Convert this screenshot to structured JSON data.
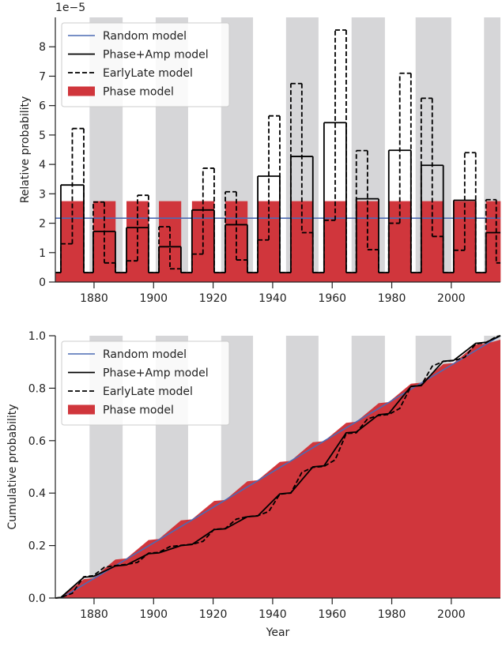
{
  "chart_data": [
    {
      "type": "step",
      "offset_label": "1e−5",
      "ylabel": "Relative probability",
      "xlim": [
        1867,
        2016.5
      ],
      "ylim": [
        0,
        9
      ],
      "xticks": [
        1880,
        1900,
        1920,
        1940,
        1960,
        1980,
        2000
      ],
      "yticks": [
        0,
        1,
        2,
        3,
        4,
        5,
        6,
        7,
        8
      ],
      "legend": "upper left",
      "shade_color": "#d6d6d8",
      "shaded_spans": [
        [
          1878.5,
          1889.6
        ],
        [
          1900.7,
          1911.6
        ],
        [
          1922.7,
          1933.4
        ],
        [
          1944.5,
          1955.4
        ],
        [
          1966.5,
          1977.7
        ],
        [
          1988,
          2000
        ],
        [
          2011,
          2016.5
        ]
      ],
      "series": [
        {
          "name": "Random model",
          "kind": "line",
          "color": "#4c6bb4",
          "linestyle": "solid",
          "x": [
            1867,
            2016.5
          ],
          "y": [
            2.17,
            2.17
          ]
        },
        {
          "name": "Phase+Amp model",
          "kind": "step",
          "color": "#000000",
          "linestyle": "solid",
          "bins": [
            1867,
            1868.85,
            1876.55,
            1879.73,
            1887.17,
            1890.9,
            1898.3,
            1901.8,
            1909.2,
            1912.9,
            1920.35,
            1924.1,
            1931.5,
            1935.0,
            1942.4,
            1946.1,
            1953.5,
            1957.25,
            1964.7,
            1968.1,
            1975.6,
            1979.0,
            1986.45,
            1989.9,
            1997.3,
            2000.8,
            2008.2,
            2011.65,
            2016.5
          ],
          "values": [
            0.32,
            3.3,
            0.32,
            1.72,
            0.32,
            1.85,
            0.32,
            1.2,
            0.32,
            2.45,
            0.32,
            1.95,
            0.32,
            3.6,
            0.32,
            4.27,
            0.32,
            5.42,
            0.32,
            2.83,
            0.32,
            4.48,
            0.32,
            3.97,
            0.32,
            2.78,
            0.32,
            1.68
          ]
        },
        {
          "name": "EarlyLate model",
          "kind": "step",
          "color": "#000000",
          "linestyle": "dashed",
          "bins": [
            1867,
            1868.85,
            1872.7,
            1876.55,
            1879.73,
            1883.45,
            1887.17,
            1890.9,
            1894.6,
            1898.3,
            1901.8,
            1905.5,
            1909.2,
            1912.9,
            1916.6,
            1920.35,
            1924.1,
            1927.8,
            1931.5,
            1935.0,
            1938.7,
            1942.4,
            1946.1,
            1949.8,
            1953.5,
            1957.25,
            1961.0,
            1964.7,
            1968.1,
            1971.85,
            1975.6,
            1979.0,
            1982.7,
            1986.45,
            1989.9,
            1993.6,
            1997.3,
            2000.8,
            2004.5,
            2008.2,
            2011.65,
            2015.1,
            2016.5
          ],
          "values": [
            0.32,
            1.3,
            5.22,
            0.32,
            2.72,
            0.65,
            0.32,
            0.72,
            2.95,
            0.32,
            1.88,
            0.45,
            0.32,
            0.95,
            3.87,
            0.32,
            3.07,
            0.75,
            0.32,
            1.43,
            5.65,
            0.32,
            6.75,
            1.68,
            0.32,
            2.1,
            8.57,
            0.32,
            4.47,
            1.1,
            0.32,
            2.0,
            7.1,
            0.32,
            6.25,
            1.55,
            0.32,
            1.08,
            4.4,
            0.32,
            2.8,
            0.65
          ]
        },
        {
          "name": "Phase model",
          "kind": "fill-step",
          "color": "#d0363c",
          "bins": [
            1867,
            1868.85,
            1876.55,
            1879.73,
            1887.17,
            1890.9,
            1898.3,
            1901.8,
            1909.2,
            1912.9,
            1920.35,
            1924.1,
            1931.5,
            1935.0,
            1942.4,
            1946.1,
            1953.5,
            1957.25,
            1964.7,
            1968.1,
            1975.6,
            1979.0,
            1986.45,
            1989.9,
            1997.3,
            2000.8,
            2008.2,
            2011.65,
            2016.5
          ],
          "values": [
            0.32,
            2.75,
            0.32,
            2.75,
            0.32,
            2.75,
            0.32,
            2.75,
            0.32,
            2.75,
            0.32,
            2.75,
            0.32,
            2.75,
            0.32,
            2.75,
            0.32,
            2.75,
            0.32,
            2.75,
            0.32,
            2.75,
            0.32,
            2.75,
            0.32,
            2.75,
            0.32,
            2.75
          ]
        }
      ]
    },
    {
      "type": "line",
      "xlabel": "Year",
      "ylabel": "Cumulative probability",
      "xlim": [
        1867,
        2016.5
      ],
      "ylim": [
        0,
        1
      ],
      "xticks": [
        1880,
        1900,
        1920,
        1940,
        1960,
        1980,
        2000
      ],
      "yticks": [
        {
          "value": 0,
          "label": "0.0"
        },
        0.2,
        0.4,
        0.6,
        0.8,
        {
          "value": 1,
          "label": "1.0"
        }
      ],
      "legend": "upper left",
      "shade_color": "#d6d6d8",
      "shaded_spans": [
        [
          1878.5,
          1889.6
        ],
        [
          1900.7,
          1911.6
        ],
        [
          1922.7,
          1933.4
        ],
        [
          1944.5,
          1955.4
        ],
        [
          1966.5,
          1977.7
        ],
        [
          1988,
          2000
        ],
        [
          2011,
          2016.5
        ]
      ],
      "series": [
        {
          "name": "Random model",
          "kind": "line",
          "color": "#4c6bb4",
          "linestyle": "solid",
          "x": [
            1869,
            2016.5
          ],
          "y": [
            0,
            1
          ]
        },
        {
          "name": "Phase+Amp model",
          "kind": "line",
          "color": "#000000",
          "linestyle": "solid",
          "x": [
            1867,
            1868.85,
            1876.55,
            1879.73,
            1887.17,
            1890.9,
            1898.3,
            1901.8,
            1909.2,
            1912.9,
            1920.35,
            1924.1,
            1931.5,
            1935.0,
            1942.4,
            1946.1,
            1953.5,
            1957.25,
            1964.7,
            1968.1,
            1975.6,
            1979.0,
            1986.45,
            1989.9,
            1997.3,
            2000.8,
            2008.2,
            2011.65,
            2016.5
          ],
          "y": [
            0,
            0.002,
            0.079,
            0.082,
            0.122,
            0.126,
            0.169,
            0.172,
            0.2,
            0.204,
            0.261,
            0.264,
            0.31,
            0.313,
            0.397,
            0.401,
            0.5,
            0.504,
            0.63,
            0.633,
            0.699,
            0.703,
            0.807,
            0.81,
            0.903,
            0.906,
            0.971,
            0.975,
            1.0
          ]
        },
        {
          "name": "EarlyLate model",
          "kind": "line",
          "color": "#000000",
          "linestyle": "dashed",
          "x": [
            1867,
            1868.85,
            1872.7,
            1876.55,
            1879.73,
            1883.45,
            1887.17,
            1890.9,
            1894.6,
            1898.3,
            1901.8,
            1905.5,
            1909.2,
            1912.9,
            1916.6,
            1920.35,
            1924.1,
            1927.8,
            1931.5,
            1935.0,
            1938.7,
            1942.4,
            1946.1,
            1949.8,
            1953.5,
            1957.25,
            1961.0,
            1964.7,
            1968.1,
            1971.85,
            1975.6,
            1979.0,
            1982.7,
            1986.45,
            1989.9,
            1993.6,
            1997.3,
            2000.8,
            2004.5,
            2008.2,
            2011.65,
            2015.1,
            2016.5
          ],
          "y": [
            0,
            0.002,
            0.018,
            0.081,
            0.085,
            0.117,
            0.124,
            0.128,
            0.136,
            0.171,
            0.174,
            0.196,
            0.201,
            0.205,
            0.216,
            0.262,
            0.265,
            0.301,
            0.31,
            0.314,
            0.33,
            0.396,
            0.4,
            0.479,
            0.498,
            0.502,
            0.527,
            0.627,
            0.63,
            0.683,
            0.696,
            0.7,
            0.723,
            0.807,
            0.811,
            0.884,
            0.902,
            0.905,
            0.918,
            0.969,
            0.973,
            0.997,
            1.0
          ]
        },
        {
          "name": "Phase model",
          "kind": "fill",
          "color": "#d0363c",
          "x": [
            1867,
            1868.85,
            1876.55,
            1879.73,
            1887.17,
            1890.9,
            1898.3,
            1901.8,
            1909.2,
            1912.9,
            1920.35,
            1924.1,
            1931.5,
            1935.0,
            1942.4,
            1946.1,
            1953.5,
            1957.25,
            1964.7,
            1968.1,
            1975.6,
            1979.0,
            1986.45,
            1989.9,
            1997.3,
            2000.8,
            2008.2,
            2011.65,
            2016.5
          ],
          "y": [
            0,
            0.002,
            0.072,
            0.076,
            0.147,
            0.151,
            0.221,
            0.225,
            0.296,
            0.3,
            0.37,
            0.374,
            0.445,
            0.449,
            0.519,
            0.523,
            0.594,
            0.598,
            0.668,
            0.672,
            0.743,
            0.747,
            0.817,
            0.821,
            0.892,
            0.896,
            0.966,
            0.97,
            0.985
          ]
        }
      ]
    }
  ]
}
